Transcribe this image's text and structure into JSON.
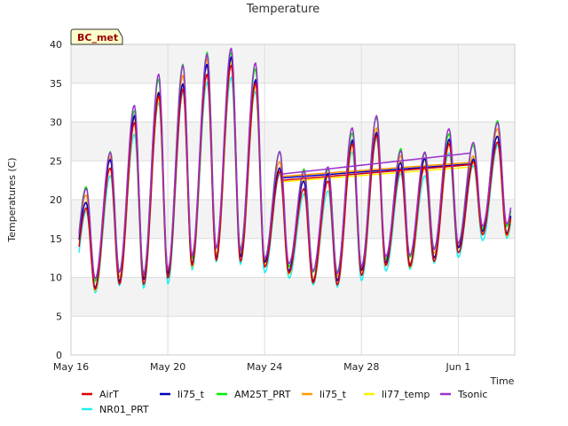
{
  "chart_data": {
    "type": "line",
    "title": "Temperature",
    "xlabel": "Time",
    "ylabel": "Temperatures (C)",
    "badge": "BC_met",
    "xlim": [
      "2023-05-16",
      "2023-06-03T08:00"
    ],
    "ylim": [
      0,
      40
    ],
    "yticks": [
      0,
      5,
      10,
      15,
      20,
      25,
      30,
      35,
      40
    ],
    "xticks": [
      {
        "date": "2023-05-16",
        "label": "May 16"
      },
      {
        "date": "2023-05-20",
        "label": "May 20"
      },
      {
        "date": "2023-05-24",
        "label": "May 24"
      },
      {
        "date": "2023-05-28",
        "label": "May 28"
      },
      {
        "date": "2023-06-01",
        "label": "Jun 1"
      }
    ],
    "grid": true,
    "legend_position": "bottom",
    "daily_peaks": [
      {
        "date": "2023-05-16",
        "max": 20.5,
        "min": 8.5
      },
      {
        "date": "2023-05-17",
        "max": 25.5,
        "min": 9.0
      },
      {
        "date": "2023-05-18",
        "max": 31.0,
        "min": 10.0
      },
      {
        "date": "2023-05-19",
        "max": 34.5,
        "min": 10.0
      },
      {
        "date": "2023-05-20",
        "max": 36.0,
        "min": 10.5
      },
      {
        "date": "2023-05-21",
        "max": 38.0,
        "min": 12.0
      },
      {
        "date": "2023-05-22",
        "max": 38.5,
        "min": 13.0
      },
      {
        "date": "2023-05-23",
        "max": 36.0,
        "min": 13.0
      },
      {
        "date": "2023-05-24",
        "max": 25.0,
        "min": 12.0
      },
      {
        "date": "2023-05-25",
        "max": 23.0,
        "min": 11.0
      },
      {
        "date": "2023-05-26",
        "max": 23.5,
        "min": 10.0
      },
      {
        "date": "2023-05-27",
        "max": 28.0,
        "min": 10.0
      },
      {
        "date": "2023-05-28",
        "max": 29.5,
        "min": 11.0
      },
      {
        "date": "2023-05-29",
        "max": 25.5,
        "min": 12.0
      },
      {
        "date": "2023-05-30",
        "max": 25.5,
        "min": 12.0
      },
      {
        "date": "2023-05-31",
        "max": 28.0,
        "min": 13.0
      },
      {
        "date": "2023-06-01",
        "max": 26.0,
        "min": 14.0
      },
      {
        "date": "2023-06-02",
        "max": 29.0,
        "min": 16.0
      }
    ],
    "gap_segment": {
      "start": "2023-05-24T17:00",
      "end": "2023-06-01T12:00"
    },
    "series": [
      {
        "name": "AirT",
        "color": "#dd0000",
        "offset": -1.2,
        "gap_line": [
          22.5,
          24.5
        ]
      },
      {
        "name": "NR01_PRT",
        "color": "#22eeee",
        "offset": -2.0,
        "gap_line": null
      },
      {
        "name": "li75_t",
        "color": "#0000bb",
        "offset": -0.5,
        "gap_line": [
          22.8,
          24.6
        ]
      },
      {
        "name": "AM25T_PRT",
        "color": "#00ee00",
        "offset": 0.8,
        "gap_line": null
      },
      {
        "name": "li75_t",
        "color": "#ff9900",
        "offset": -0.2,
        "gap_line": [
          23.0,
          24.8
        ]
      },
      {
        "name": "li77_temp",
        "color": "#ffee00",
        "offset": -0.8,
        "gap_line": [
          22.3,
          24.2
        ]
      },
      {
        "name": "Tsonic",
        "color": "#9933cc",
        "offset": 1.0,
        "gap_line": [
          23.3,
          26.0
        ]
      }
    ]
  }
}
